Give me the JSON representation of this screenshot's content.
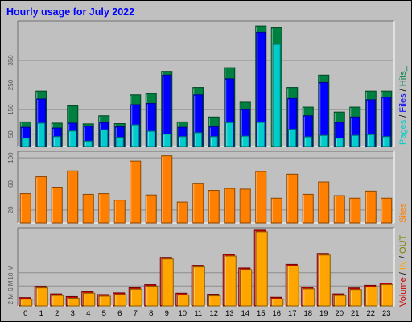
{
  "title": "Hourly usage for July 2022",
  "hours": [
    "0",
    "1",
    "2",
    "3",
    "4",
    "5",
    "6",
    "7",
    "8",
    "9",
    "10",
    "11",
    "12",
    "13",
    "14",
    "15",
    "16",
    "17",
    "18",
    "19",
    "20",
    "21",
    "22",
    "23"
  ],
  "colors": {
    "title": "#0000ff",
    "pages": "#00cccc",
    "files": "#0000ff",
    "hits": "#008040",
    "sites": "#ff8000",
    "volume_in": "#ffa500",
    "volume_out": "#808000",
    "volume": "#cc0000",
    "panel": "#c0c0c0"
  },
  "chart_data": [
    {
      "type": "bar",
      "name_label": "Pages/Files/Hits",
      "categories": [
        "0",
        "1",
        "2",
        "3",
        "4",
        "5",
        "6",
        "7",
        "8",
        "9",
        "10",
        "11",
        "12",
        "13",
        "14",
        "15",
        "16",
        "17",
        "18",
        "19",
        "20",
        "21",
        "22",
        "23"
      ],
      "series": [
        {
          "name": "Hits",
          "values": [
            100,
            225,
            95,
            165,
            92,
            125,
            93,
            210,
            215,
            305,
            100,
            240,
            120,
            320,
            180,
            490,
            482,
            240,
            160,
            290,
            140,
            160,
            225,
            225
          ]
        },
        {
          "name": "Files",
          "values": [
            78,
            193,
            75,
            95,
            82,
            97,
            80,
            170,
            175,
            290,
            78,
            210,
            80,
            275,
            150,
            463,
            0,
            195,
            125,
            260,
            98,
            120,
            190,
            200
          ]
        },
        {
          "name": "Pages",
          "values": [
            34,
            95,
            40,
            63,
            22,
            68,
            37,
            88,
            62,
            50,
            40,
            56,
            40,
            97,
            42,
            98,
            415,
            70,
            39,
            45,
            34,
            45,
            48,
            40
          ]
        }
      ],
      "yticks": [
        "50",
        "150",
        "250",
        "350"
      ],
      "ytick_values": [
        50,
        150,
        250,
        350
      ],
      "ylim": [
        0,
        510
      ]
    },
    {
      "type": "bar",
      "name_label": "Sites",
      "categories": [
        "0",
        "1",
        "2",
        "3",
        "4",
        "5",
        "6",
        "7",
        "8",
        "9",
        "10",
        "11",
        "12",
        "13",
        "14",
        "15",
        "16",
        "17",
        "18",
        "19",
        "20",
        "21",
        "22",
        "23"
      ],
      "series": [
        {
          "name": "Sites",
          "values": [
            45,
            71,
            55,
            80,
            44,
            45,
            35,
            95,
            43,
            103,
            32,
            61,
            50,
            53,
            52,
            79,
            38,
            75,
            44,
            63,
            42,
            38,
            49,
            38
          ]
        }
      ],
      "yticks": [
        "20",
        "60",
        "100"
      ],
      "ytick_values": [
        20,
        60,
        100
      ],
      "ylim": [
        0,
        110
      ]
    },
    {
      "type": "bar",
      "name_label": "Volume",
      "categories": [
        "0",
        "1",
        "2",
        "3",
        "4",
        "5",
        "6",
        "7",
        "8",
        "9",
        "10",
        "11",
        "12",
        "13",
        "14",
        "15",
        "16",
        "17",
        "18",
        "19",
        "20",
        "21",
        "22",
        "23"
      ],
      "series": [
        {
          "name": "Volume",
          "values": [
            2.5,
            5.9,
            3.6,
            2.8,
            4.3,
            3.4,
            3.9,
            5.5,
            6.4,
            14.6,
            3.8,
            12.2,
            3.5,
            15.5,
            11.4,
            22.8,
            2.6,
            12.5,
            5.6,
            15.8,
            3.6,
            5.4,
            6.2,
            6.9
          ]
        }
      ],
      "yticks": [
        "2 M",
        "6 M",
        "10 M"
      ],
      "ytick_values": [
        2,
        6,
        10
      ],
      "ylim": [
        0,
        23.5
      ]
    }
  ],
  "side_labels": {
    "pages": "Pages",
    "slash1": " / ",
    "files": "Files",
    "slash2": " / ",
    "hits": "Hits_",
    "sites": "Sites",
    "volume": "Volume",
    "sep1": " / ",
    "in": "IN",
    "sep2": " / ",
    "out": "OUT"
  }
}
